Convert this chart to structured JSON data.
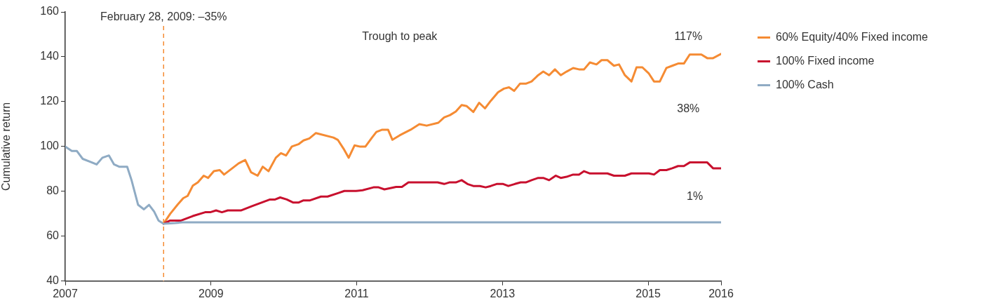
{
  "chart_data": {
    "type": "line",
    "ylabel": "Cumulative return",
    "xlim": [
      2007,
      2016
    ],
    "xticks": [
      2007,
      2009,
      2011,
      2013,
      2015,
      2016
    ],
    "ylim": [
      40,
      160
    ],
    "yticks": [
      40,
      60,
      80,
      100,
      120,
      140,
      160
    ],
    "grid": false,
    "legend": "right",
    "marker": "none",
    "line_style": "solid",
    "ref_lines": [
      {
        "axis": "x",
        "value": 2008.35,
        "label": "February 28, 2009: –35%",
        "color": "#f58b33",
        "line_style": "dashed"
      }
    ],
    "annotations": [
      "Trough to peak",
      "117%",
      "38%",
      "1%"
    ],
    "series": [
      {
        "name": "60% Equity/40% Fixed income",
        "color": "#f58b33",
        "x": [
          2008.35,
          2008.44,
          2008.54,
          2008.62,
          2008.68,
          2008.75,
          2008.82,
          2008.9,
          2008.96,
          2009.04,
          2009.12,
          2009.18,
          2009.28,
          2009.38,
          2009.47,
          2009.55,
          2009.64,
          2009.71,
          2009.79,
          2009.89,
          2009.96,
          2010.03,
          2010.11,
          2010.2,
          2010.27,
          2010.35,
          2010.44,
          2010.68,
          2010.74,
          2010.82,
          2010.89,
          2010.97,
          2011.04,
          2011.12,
          2011.21,
          2011.27,
          2011.35,
          2011.43,
          2011.49,
          2011.59,
          2011.74,
          2011.86,
          2011.96,
          2012.12,
          2012.2,
          2012.28,
          2012.36,
          2012.44,
          2012.51,
          2012.6,
          2012.68,
          2012.76,
          2012.84,
          2012.94,
          2013.02,
          2013.09,
          2013.16,
          2013.24,
          2013.32,
          2013.4,
          2013.49,
          2013.56,
          2013.64,
          2013.72,
          2013.8,
          2013.88,
          2013.97,
          2014.05,
          2014.12,
          2014.2,
          2014.29,
          2014.36,
          2014.44,
          2014.53,
          2014.6,
          2014.68,
          2014.77,
          2014.84,
          2014.92,
          2015.01,
          2015.08,
          2015.16,
          2015.25,
          2015.33,
          2015.41,
          2015.49,
          2015.57,
          2015.73,
          2015.81,
          2015.89,
          2016.0
        ],
        "values": [
          65.6,
          70,
          74,
          77,
          78,
          82.5,
          84,
          87,
          86,
          89,
          89.5,
          87.5,
          90,
          92.5,
          94,
          88.5,
          87,
          91,
          89,
          95,
          97,
          96,
          100,
          101,
          102.7,
          103.6,
          106,
          104,
          103,
          99,
          95,
          100.5,
          100,
          100,
          104,
          106.5,
          107.5,
          107.5,
          103,
          105,
          107.5,
          110,
          109.3,
          110.6,
          113,
          114,
          115.6,
          118.5,
          118,
          115.4,
          119.5,
          117,
          120.4,
          124.2,
          125.8,
          126.4,
          124.8,
          128,
          128,
          129,
          131.8,
          133.4,
          131.8,
          134.4,
          131.8,
          133.4,
          135,
          134.4,
          134.4,
          137.5,
          136.6,
          138.5,
          138.5,
          136,
          136.6,
          131.8,
          129,
          135.3,
          135.3,
          132.5,
          129,
          129,
          135,
          136,
          137,
          137,
          141,
          141,
          139.4,
          139.4,
          141.3
        ]
      },
      {
        "name": "100% Fixed income",
        "color": "#c8102e",
        "x": [
          2008.35,
          2008.44,
          2008.59,
          2008.75,
          2008.92,
          2008.99,
          2009.07,
          2009.15,
          2009.23,
          2009.41,
          2009.57,
          2009.81,
          2009.88,
          2009.95,
          2010.04,
          2010.13,
          2010.2,
          2010.27,
          2010.36,
          2010.51,
          2010.6,
          2010.75,
          2010.83,
          2010.99,
          2011.08,
          2011.23,
          2011.3,
          2011.38,
          2011.54,
          2011.62,
          2011.71,
          2012.11,
          2012.2,
          2012.27,
          2012.36,
          2012.44,
          2012.52,
          2012.6,
          2012.69,
          2012.77,
          2012.84,
          2012.92,
          2013.01,
          2013.08,
          2013.17,
          2013.25,
          2013.32,
          2013.4,
          2013.49,
          2013.56,
          2013.64,
          2013.73,
          2013.8,
          2013.88,
          2013.97,
          2014.05,
          2014.12,
          2014.2,
          2014.44,
          2014.53,
          2014.68,
          2014.77,
          2015.01,
          2015.08,
          2015.16,
          2015.25,
          2015.33,
          2015.41,
          2015.49,
          2015.57,
          2015.81,
          2015.89,
          2016.0
        ],
        "values": [
          65.6,
          67,
          67,
          69,
          70.7,
          70.7,
          71.5,
          70.7,
          71.5,
          71.5,
          73.5,
          76.4,
          76.4,
          77.3,
          76.4,
          75,
          75,
          76,
          76,
          77.7,
          77.7,
          79.3,
          80.2,
          80.2,
          80.5,
          81.8,
          81.8,
          80.9,
          82,
          82,
          84,
          84,
          83.3,
          84,
          84,
          85,
          83.3,
          82.4,
          82.4,
          81.8,
          82.4,
          83.3,
          83.3,
          82.4,
          83.3,
          84,
          84,
          85,
          86,
          86,
          85,
          87,
          86,
          86.5,
          87.5,
          87.5,
          89,
          88,
          88,
          87,
          87,
          88,
          88,
          87.5,
          89.5,
          89.5,
          90.3,
          91.3,
          91.3,
          92.9,
          92.9,
          90.3,
          90.3
        ]
      },
      {
        "name": "100% Cash",
        "color": "#8fabc4",
        "x": [
          2007.0,
          2007.09,
          2007.16,
          2007.24,
          2007.36,
          2007.43,
          2007.51,
          2007.6,
          2007.67,
          2007.74,
          2007.85,
          2007.91,
          2008.0,
          2008.08,
          2008.15,
          2008.22,
          2008.28,
          2008.35,
          2008.51,
          2008.61,
          2016.0
        ],
        "values": [
          100,
          98,
          98,
          94.5,
          93,
          92,
          95,
          96,
          92,
          91,
          91,
          85,
          74,
          72,
          74,
          71,
          67,
          65.6,
          65.9,
          66.2,
          66.2
        ]
      }
    ]
  }
}
